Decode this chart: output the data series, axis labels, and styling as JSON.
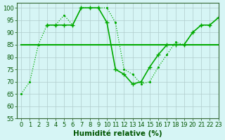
{
  "series": [
    {
      "name": "dotted_small",
      "x": [
        0,
        1,
        2,
        3,
        4,
        5,
        6,
        7,
        8,
        9,
        10,
        11,
        12,
        13,
        14,
        15,
        16,
        17,
        18,
        19,
        20,
        21,
        22,
        23
      ],
      "y": [
        65,
        70,
        85,
        93,
        93,
        97,
        93,
        100,
        100,
        100,
        100,
        94,
        75,
        73,
        69,
        70,
        76,
        81,
        86,
        85,
        90,
        93,
        93,
        96
      ],
      "color": "#00aa00",
      "linestyle": "dotted",
      "marker": ".",
      "markersize": 2.5,
      "linewidth": 0.9
    },
    {
      "name": "line_with_markers",
      "x": [
        3,
        4,
        5,
        6,
        7,
        8,
        9,
        10,
        11,
        12,
        13,
        14,
        15,
        16,
        17,
        18,
        19,
        20,
        21,
        22,
        23
      ],
      "y": [
        93,
        93,
        93,
        93,
        100,
        100,
        100,
        94,
        75,
        73,
        69,
        70,
        76,
        81,
        85,
        85,
        85,
        90,
        93,
        93,
        96
      ],
      "color": "#00aa00",
      "linestyle": "solid",
      "marker": "+",
      "markersize": 4,
      "linewidth": 1.2
    },
    {
      "name": "flat_line",
      "x": [
        0,
        1,
        2,
        3,
        4,
        5,
        6,
        7,
        8,
        9,
        10,
        11,
        12,
        13,
        14,
        15,
        16,
        17,
        18,
        19,
        20,
        21,
        22,
        23
      ],
      "y": [
        85,
        85,
        85,
        85,
        85,
        85,
        85,
        85,
        85,
        85,
        85,
        85,
        85,
        85,
        85,
        85,
        85,
        85,
        85,
        85,
        85,
        85,
        85,
        85
      ],
      "color": "#00aa00",
      "linestyle": "solid",
      "marker": null,
      "markersize": 0,
      "linewidth": 1.5
    }
  ],
  "xlim": [
    -0.5,
    23
  ],
  "ylim": [
    55,
    102
  ],
  "yticks": [
    55,
    60,
    65,
    70,
    75,
    80,
    85,
    90,
    95,
    100
  ],
  "xticks": [
    0,
    1,
    2,
    3,
    4,
    5,
    6,
    7,
    8,
    9,
    10,
    11,
    12,
    13,
    14,
    15,
    16,
    17,
    18,
    19,
    20,
    21,
    22,
    23
  ],
  "xlabel": "Humidité relative (%)",
  "background_color": "#d6f5f5",
  "grid_color": "#b0cccc",
  "axis_color": "#336633",
  "label_color": "#005500",
  "tick_color": "#005500",
  "xlabel_fontsize": 7.5,
  "tick_fontsize": 6
}
